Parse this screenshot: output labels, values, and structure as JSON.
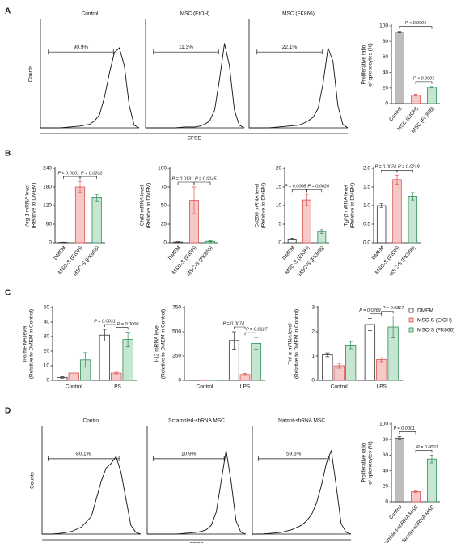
{
  "panel_labels": [
    "A",
    "B",
    "C",
    "D"
  ],
  "histogram_groups": [
    {
      "ylabel": "Counts",
      "xlabel": "CFSE"
    },
    {
      "ylabel": "Counts",
      "xlabel": "CFSE"
    }
  ],
  "chart_data": [
    {
      "type": "line",
      "title": "Control",
      "xlim": [
        0,
        100
      ],
      "ylim": [
        0,
        100
      ],
      "x": [
        0,
        10,
        20,
        30,
        40,
        50,
        55,
        60,
        65,
        70,
        75,
        80,
        85,
        90,
        95,
        100
      ],
      "values": [
        0,
        0,
        0,
        1,
        2,
        4,
        8,
        15,
        35,
        62,
        85,
        90,
        70,
        25,
        3,
        0
      ],
      "gate": [
        8,
        74
      ],
      "gate_label": "90.9%",
      "color": "#111111"
    },
    {
      "type": "line",
      "title": "MSC (EtOH)",
      "xlim": [
        0,
        100
      ],
      "ylim": [
        0,
        100
      ],
      "x": [
        0,
        10,
        20,
        30,
        40,
        50,
        55,
        60,
        65,
        70,
        75,
        80,
        85,
        90,
        95,
        100
      ],
      "values": [
        0,
        0,
        0,
        0,
        1,
        1,
        2,
        4,
        8,
        20,
        55,
        95,
        70,
        20,
        3,
        0
      ],
      "gate": [
        8,
        74
      ],
      "gate_label": "11.3%",
      "color": "#111111"
    },
    {
      "type": "line",
      "title": "MSC (FK866)",
      "xlim": [
        0,
        100
      ],
      "ylim": [
        0,
        100
      ],
      "x": [
        0,
        10,
        20,
        30,
        40,
        50,
        55,
        60,
        65,
        70,
        75,
        80,
        85,
        90,
        95,
        100
      ],
      "values": [
        0,
        0,
        0,
        1,
        2,
        3,
        5,
        8,
        12,
        22,
        50,
        90,
        75,
        25,
        4,
        0
      ],
      "gate": [
        8,
        74
      ],
      "gate_label": "22.1%",
      "color": "#111111"
    },
    {
      "type": "bar",
      "ylabel": [
        "Proliferative ratio",
        "of splenocytes (%)"
      ],
      "categories": [
        "Control",
        "MSC (EtOH)",
        "MSC (FK866)"
      ],
      "values": [
        92,
        11,
        21
      ],
      "errors": [
        1,
        1,
        1
      ],
      "colors": [
        "#bdbdbd",
        "#f6c9c9",
        "#c7e6d2"
      ],
      "edgecolors": [
        "#333333",
        "#d9534f",
        "#2e8b57"
      ],
      "ylim": [
        0,
        100
      ],
      "yticks": [
        0,
        20,
        40,
        60,
        80,
        100
      ],
      "annotations": [
        "P < 0.0001",
        "P < 0.0001"
      ]
    },
    {
      "type": "bar",
      "ylabel": [
        "Arg-1 mRNA level",
        "(Relative to DMEM)"
      ],
      "categories": [
        "DMEM",
        "MSC-S (EtOH)",
        "MSC-S (FK866)"
      ],
      "values": [
        1,
        180,
        145
      ],
      "errors": [
        1,
        18,
        10
      ],
      "colors": [
        "#ffffff",
        "#f6c9c9",
        "#c7e6d2"
      ],
      "edgecolors": [
        "#333333",
        "#d9534f",
        "#2e8b57"
      ],
      "ylim": [
        0,
        240
      ],
      "yticks": [
        0,
        60,
        120,
        180,
        240
      ],
      "annotations": [
        "P < 0.0001",
        "P = 0.0202"
      ]
    },
    {
      "type": "bar",
      "ylabel": [
        "Chil3 mRNA level",
        "(Relative to DMEM)"
      ],
      "categories": [
        "DMEM",
        "MSC-S (EtOH)",
        "MSC-S (FK866)"
      ],
      "values": [
        1,
        57,
        2
      ],
      "errors": [
        0.5,
        18,
        0.8
      ],
      "colors": [
        "#ffffff",
        "#f6c9c9",
        "#c7e6d2"
      ],
      "edgecolors": [
        "#333333",
        "#d9534f",
        "#2e8b57"
      ],
      "ylim": [
        0,
        100
      ],
      "yticks": [
        0,
        25,
        50,
        75,
        100
      ],
      "annotations": [
        "P = 0.0131",
        "P = 0.0145"
      ]
    },
    {
      "type": "bar",
      "ylabel": [
        "Cd206 mRNA level",
        "(Relative to DMEM)"
      ],
      "categories": [
        "DMEM",
        "MSC-S (EtOH)",
        "MSC-S (FK866)"
      ],
      "values": [
        1,
        11.5,
        3
      ],
      "errors": [
        0.2,
        1.5,
        0.5
      ],
      "colors": [
        "#ffffff",
        "#f6c9c9",
        "#c7e6d2"
      ],
      "edgecolors": [
        "#333333",
        "#d9534f",
        "#2e8b57"
      ],
      "ylim": [
        0,
        20
      ],
      "yticks": [
        0,
        5,
        10,
        15,
        20
      ],
      "annotations": [
        "P = 0.0008",
        "P = 0.0026"
      ]
    },
    {
      "type": "bar",
      "ylabel": [
        "Tgf-β mRNA level",
        "(Relative to DMEM)"
      ],
      "categories": [
        "DMEM",
        "MSC-S (EtOH)",
        "MSC-S (FK866)"
      ],
      "values": [
        1.0,
        1.7,
        1.25
      ],
      "errors": [
        0.05,
        0.12,
        0.1
      ],
      "colors": [
        "#ffffff",
        "#f6c9c9",
        "#c7e6d2"
      ],
      "edgecolors": [
        "#333333",
        "#d9534f",
        "#2e8b57"
      ],
      "ylim": [
        0,
        2
      ],
      "yticks": [
        {
          "value": 0,
          "label": "0.0"
        },
        0.5,
        {
          "value": 1,
          "label": "1.0"
        },
        1.5,
        {
          "value": 2,
          "label": "2.0"
        }
      ],
      "annotations": [
        "P = 0.0024",
        "P = 0.0219"
      ]
    },
    {
      "type": "bar",
      "ylabel": [
        "Il-6 mRNA level",
        "(Relative to DMEM in Control)"
      ],
      "categories": [
        "Control",
        "LPS"
      ],
      "series": [
        {
          "name": "DMEM",
          "color": "#ffffff",
          "edgecolor": "#333333",
          "values": [
            2,
            31
          ],
          "errors": [
            0.5,
            4
          ]
        },
        {
          "name": "MSC-S (EtOH)",
          "color": "#f6c9c9",
          "edgecolor": "#d9534f",
          "values": [
            5,
            5
          ],
          "errors": [
            1.5,
            0.6
          ]
        },
        {
          "name": "MSC-S (FK866)",
          "color": "#c7e6d2",
          "edgecolor": "#2e8b57",
          "values": [
            14,
            28
          ],
          "errors": [
            5,
            5
          ]
        }
      ],
      "ylim": [
        0,
        50
      ],
      "yticks": [
        0,
        10,
        20,
        30,
        40,
        50
      ],
      "annotations": [
        "P = 0.0031",
        "P = 0.0060"
      ]
    },
    {
      "type": "bar",
      "ylabel": [
        "Il-12 mRNA level",
        "(Relative to DMEM in Control)"
      ],
      "categories": [
        "Control",
        "LPS"
      ],
      "series": [
        {
          "name": "DMEM",
          "color": "#ffffff",
          "edgecolor": "#333333",
          "values": [
            2,
            410
          ],
          "errors": [
            2,
            90
          ]
        },
        {
          "name": "MSC-S (EtOH)",
          "color": "#f6c9c9",
          "edgecolor": "#d9534f",
          "values": [
            2,
            60
          ],
          "errors": [
            2,
            10
          ]
        },
        {
          "name": "MSC-S (FK866)",
          "color": "#c7e6d2",
          "edgecolor": "#2e8b57",
          "values": [
            2,
            380
          ],
          "errors": [
            2,
            60
          ]
        }
      ],
      "ylim": [
        0,
        750
      ],
      "yticks": [
        0,
        250,
        500,
        750
      ],
      "annotations": [
        "P = 0.0074",
        "P = 0.0127"
      ]
    },
    {
      "type": "bar",
      "ylabel": [
        "Tnf-α mRNA level",
        "(Relative to DMEM in Control)"
      ],
      "categories": [
        "Control",
        "LPS"
      ],
      "series": [
        {
          "name": "DMEM",
          "color": "#ffffff",
          "edgecolor": "#333333",
          "values": [
            1.05,
            2.3
          ],
          "errors": [
            0.08,
            0.25
          ]
        },
        {
          "name": "MSC-S (EtOH)",
          "color": "#f6c9c9",
          "edgecolor": "#d9534f",
          "values": [
            0.6,
            0.85
          ],
          "errors": [
            0.1,
            0.08
          ]
        },
        {
          "name": "MSC-S (FK866)",
          "color": "#c7e6d2",
          "edgecolor": "#2e8b57",
          "values": [
            1.45,
            2.2
          ],
          "errors": [
            0.15,
            0.45
          ]
        }
      ],
      "ylim": [
        0,
        3
      ],
      "yticks": [
        0,
        1,
        2,
        3
      ],
      "annotations": [
        "P = 0.0269",
        "P = 0.0317"
      ],
      "legend": "right"
    },
    {
      "type": "line",
      "title": "Control",
      "xlim": [
        0,
        100
      ],
      "ylim": [
        0,
        100
      ],
      "x": [
        0,
        10,
        20,
        30,
        40,
        50,
        55,
        60,
        65,
        70,
        75,
        80,
        85,
        90,
        95,
        100
      ],
      "values": [
        0,
        0,
        1,
        3,
        8,
        20,
        40,
        60,
        75,
        80,
        88,
        70,
        40,
        10,
        2,
        0
      ],
      "gate": [
        6,
        78
      ],
      "gate_label": "80.1%",
      "color": "#111111"
    },
    {
      "type": "line",
      "title": "Scrambled-shRNA MSC",
      "xlim": [
        0,
        100
      ],
      "ylim": [
        0,
        100
      ],
      "x": [
        0,
        10,
        20,
        30,
        40,
        50,
        55,
        60,
        65,
        70,
        75,
        80,
        85,
        90,
        95,
        100
      ],
      "values": [
        0,
        0,
        0,
        0,
        1,
        2,
        3,
        5,
        10,
        25,
        60,
        95,
        60,
        15,
        2,
        0
      ],
      "gate": [
        6,
        78
      ],
      "gate_label": "10.9%",
      "color": "#111111"
    },
    {
      "type": "line",
      "title": "Nampt-shRNA MSC",
      "xlim": [
        0,
        100
      ],
      "ylim": [
        0,
        100
      ],
      "x": [
        0,
        10,
        20,
        30,
        40,
        50,
        55,
        60,
        65,
        70,
        75,
        80,
        85,
        90,
        95,
        100
      ],
      "values": [
        0,
        0,
        1,
        2,
        5,
        10,
        15,
        22,
        35,
        55,
        80,
        95,
        55,
        12,
        2,
        0
      ],
      "gate": [
        6,
        78
      ],
      "gate_label": "59.6%",
      "color": "#111111"
    },
    {
      "type": "bar",
      "ylabel": [
        "Proliferative ratio",
        "of splenocytes (%)"
      ],
      "categories": [
        "Control",
        "Scrambled-shRNA MSC",
        "Nampt-shRNA MSC"
      ],
      "values": [
        82,
        13,
        55
      ],
      "errors": [
        2,
        1,
        5
      ],
      "colors": [
        "#bdbdbd",
        "#f6c9c9",
        "#c7e6d2"
      ],
      "edgecolors": [
        "#333333",
        "#d9534f",
        "#2e8b57"
      ],
      "ylim": [
        0,
        100
      ],
      "yticks": [
        0,
        20,
        40,
        60,
        80,
        100
      ],
      "annotations": [
        "P = 0.0001",
        "P = 0.0001"
      ]
    }
  ]
}
